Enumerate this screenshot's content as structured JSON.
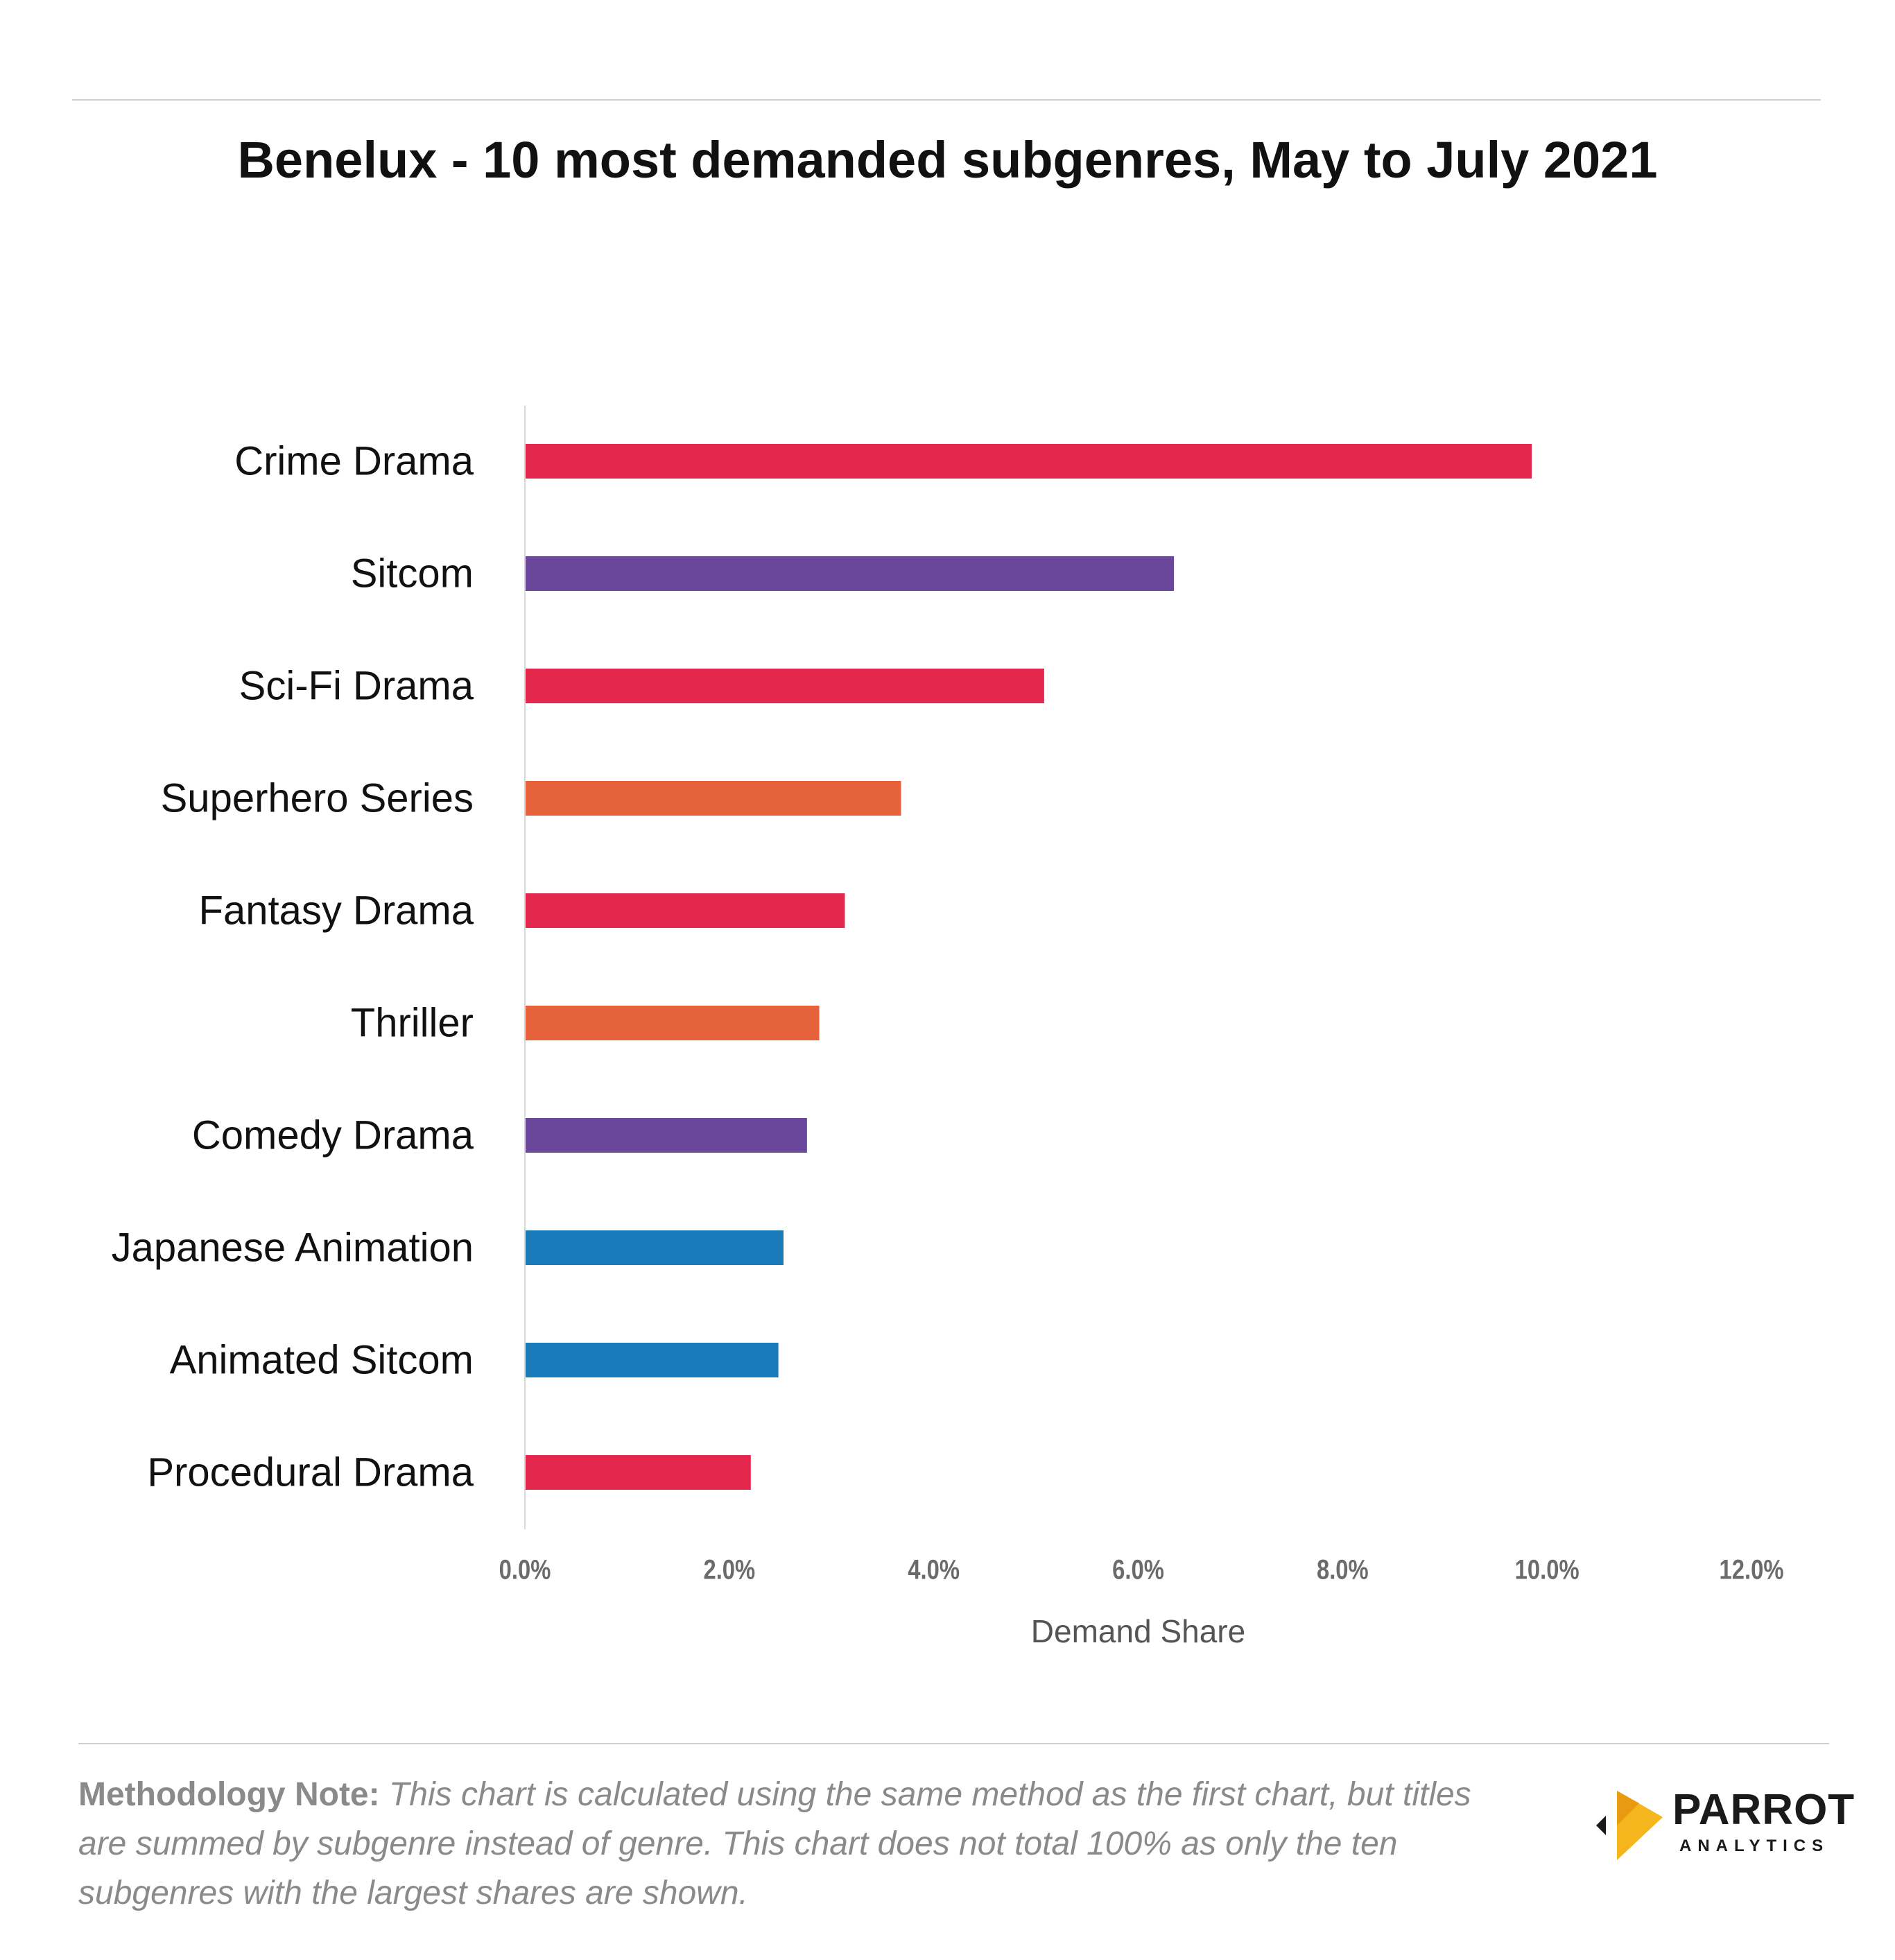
{
  "chart_data": {
    "type": "bar",
    "orientation": "horizontal",
    "title": "Benelux - 10 most demanded subgenres, May to July 2021",
    "categories": [
      "Crime Drama",
      "Sitcom",
      "Sci-Fi Drama",
      "Superhero Series",
      "Fantasy Drama",
      "Thriller",
      "Comedy Drama",
      "Japanese Animation",
      "Animated Sitcom",
      "Procedural Drama"
    ],
    "values": [
      9.85,
      6.35,
      5.08,
      3.68,
      3.13,
      2.88,
      2.76,
      2.53,
      2.48,
      2.21
    ],
    "bar_colors": [
      "#e3264b",
      "#6a479a",
      "#e3264b",
      "#e5623a",
      "#e3264b",
      "#e5623a",
      "#6a479a",
      "#1b7bba",
      "#1b7bba",
      "#e3264b"
    ],
    "xlabel": "Demand Share",
    "ylabel": "",
    "xlim": [
      0,
      12
    ],
    "ticks": [
      0,
      2,
      4,
      6,
      8,
      10,
      12
    ],
    "tick_labels": [
      "0.0%",
      "2.0%",
      "4.0%",
      "6.0%",
      "8.0%",
      "10.0%",
      "12.0%"
    ],
    "grid": false,
    "legend": "none"
  },
  "footer": {
    "note_label": "Methodology Note:",
    "note_text": "This chart is calculated using the same method as the first chart, but titles are summed by subgenre instead of genre. This chart does not total 100% as only the ten subgenres with the largest shares are shown."
  },
  "logo": {
    "word": "PARROT",
    "sub": "ANALYTICS",
    "colors": {
      "gold": "#f5b51c",
      "dark": "#1a1a1a"
    }
  }
}
